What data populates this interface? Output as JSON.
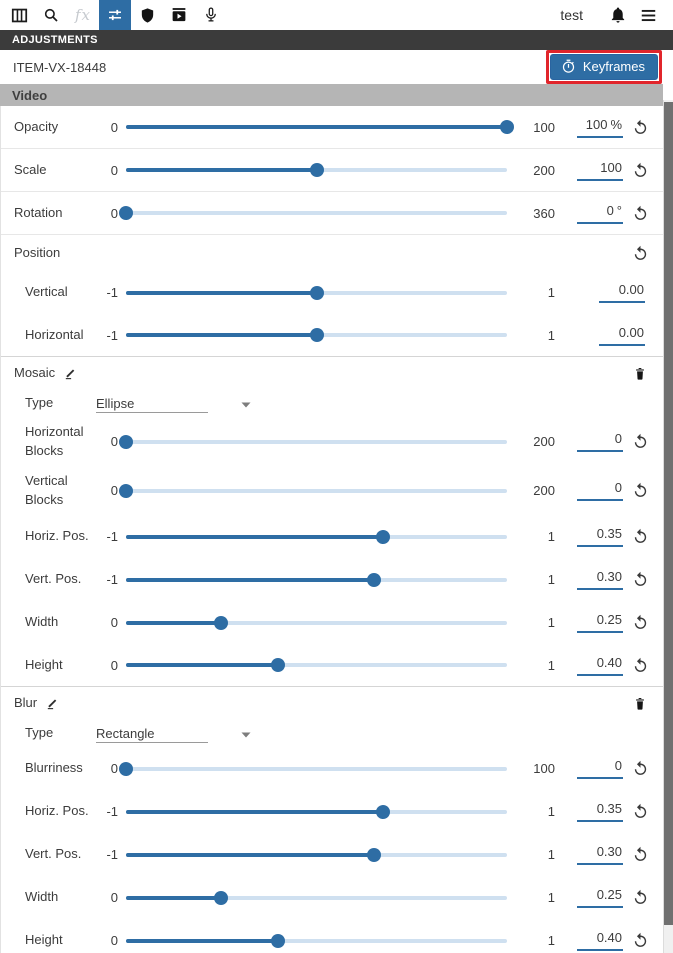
{
  "toolbar": {
    "user": "test",
    "left_icons": [
      "panels-icon",
      "search-icon",
      "effects-icon",
      "adjustments-icon",
      "shield-icon",
      "video-export-icon",
      "microphone-icon"
    ],
    "right_icons": [
      "bell-icon",
      "menu-icon"
    ],
    "active_icon": "adjustments-icon",
    "disabled_icon": "effects-icon"
  },
  "panel": {
    "title": "ADJUSTMENTS",
    "item_id": "ITEM-VX-18448",
    "keyframes_label": "Keyframes",
    "keyframes_icon": "stopwatch-icon",
    "video_section": "Video"
  },
  "colors": {
    "accent_blue": "#2e6da4",
    "annotation_red": "#e1252b",
    "header_dark": "#3b3b3b",
    "section_gray": "#b5b5b5",
    "track_light": "#cfe0f0",
    "scroll_thumb": "#707070"
  },
  "icons_misc": [
    "reset-icon",
    "edit-pencil-icon",
    "trash-icon",
    "caret-down-icon"
  ],
  "controls": [
    {
      "kind": "slider",
      "label": "Opacity",
      "min": "0",
      "max": "100",
      "value": "100",
      "suffix": "%",
      "pct": 100,
      "divider": true
    },
    {
      "kind": "slider",
      "label": "Scale",
      "min": "0",
      "max": "200",
      "value": "100",
      "pct": 50,
      "divider": true
    },
    {
      "kind": "slider",
      "label": "Rotation",
      "min": "0",
      "max": "360",
      "value": "0",
      "suffix": "°",
      "pct": 0,
      "divider": true
    },
    {
      "kind": "group",
      "label": "Position"
    },
    {
      "kind": "slider",
      "label": "Vertical",
      "min": "-1",
      "max": "1",
      "value": "0.00",
      "pct": 50,
      "indent": true,
      "reset": false
    },
    {
      "kind": "slider",
      "label": "Horizontal",
      "min": "-1",
      "max": "1",
      "value": "0.00",
      "pct": 50,
      "indent": true,
      "reset": false,
      "secborder": true
    },
    {
      "kind": "section",
      "label": "Mosaic"
    },
    {
      "kind": "dropdown",
      "label": "Type",
      "value": "Ellipse",
      "indent": true
    },
    {
      "kind": "slider",
      "label": "Horizontal Blocks",
      "min": "0",
      "max": "200",
      "value": "0",
      "pct": 0,
      "indent": true,
      "twoline": true
    },
    {
      "kind": "slider",
      "label": "Vertical Blocks",
      "min": "0",
      "max": "200",
      "value": "0",
      "pct": 0,
      "indent": true,
      "twoline": true
    },
    {
      "kind": "slider",
      "label": "Horiz. Pos.",
      "min": "-1",
      "max": "1",
      "value": "0.35",
      "pct": 67.5,
      "indent": true
    },
    {
      "kind": "slider",
      "label": "Vert. Pos.",
      "min": "-1",
      "max": "1",
      "value": "0.30",
      "pct": 65,
      "indent": true
    },
    {
      "kind": "slider",
      "label": "Width",
      "min": "0",
      "max": "1",
      "value": "0.25",
      "pct": 25,
      "indent": true
    },
    {
      "kind": "slider",
      "label": "Height",
      "min": "0",
      "max": "1",
      "value": "0.40",
      "pct": 40,
      "indent": true,
      "secborder": true
    },
    {
      "kind": "section",
      "label": "Blur"
    },
    {
      "kind": "dropdown",
      "label": "Type",
      "value": "Rectangle",
      "indent": true
    },
    {
      "kind": "slider",
      "label": "Blurriness",
      "min": "0",
      "max": "100",
      "value": "0",
      "pct": 0,
      "indent": true
    },
    {
      "kind": "slider",
      "label": "Horiz. Pos.",
      "min": "-1",
      "max": "1",
      "value": "0.35",
      "pct": 67.5,
      "indent": true
    },
    {
      "kind": "slider",
      "label": "Vert. Pos.",
      "min": "-1",
      "max": "1",
      "value": "0.30",
      "pct": 65,
      "indent": true
    },
    {
      "kind": "slider",
      "label": "Width",
      "min": "0",
      "max": "1",
      "value": "0.25",
      "pct": 25,
      "indent": true
    },
    {
      "kind": "slider",
      "label": "Height",
      "min": "0",
      "max": "1",
      "value": "0.40",
      "pct": 40,
      "indent": true
    }
  ]
}
